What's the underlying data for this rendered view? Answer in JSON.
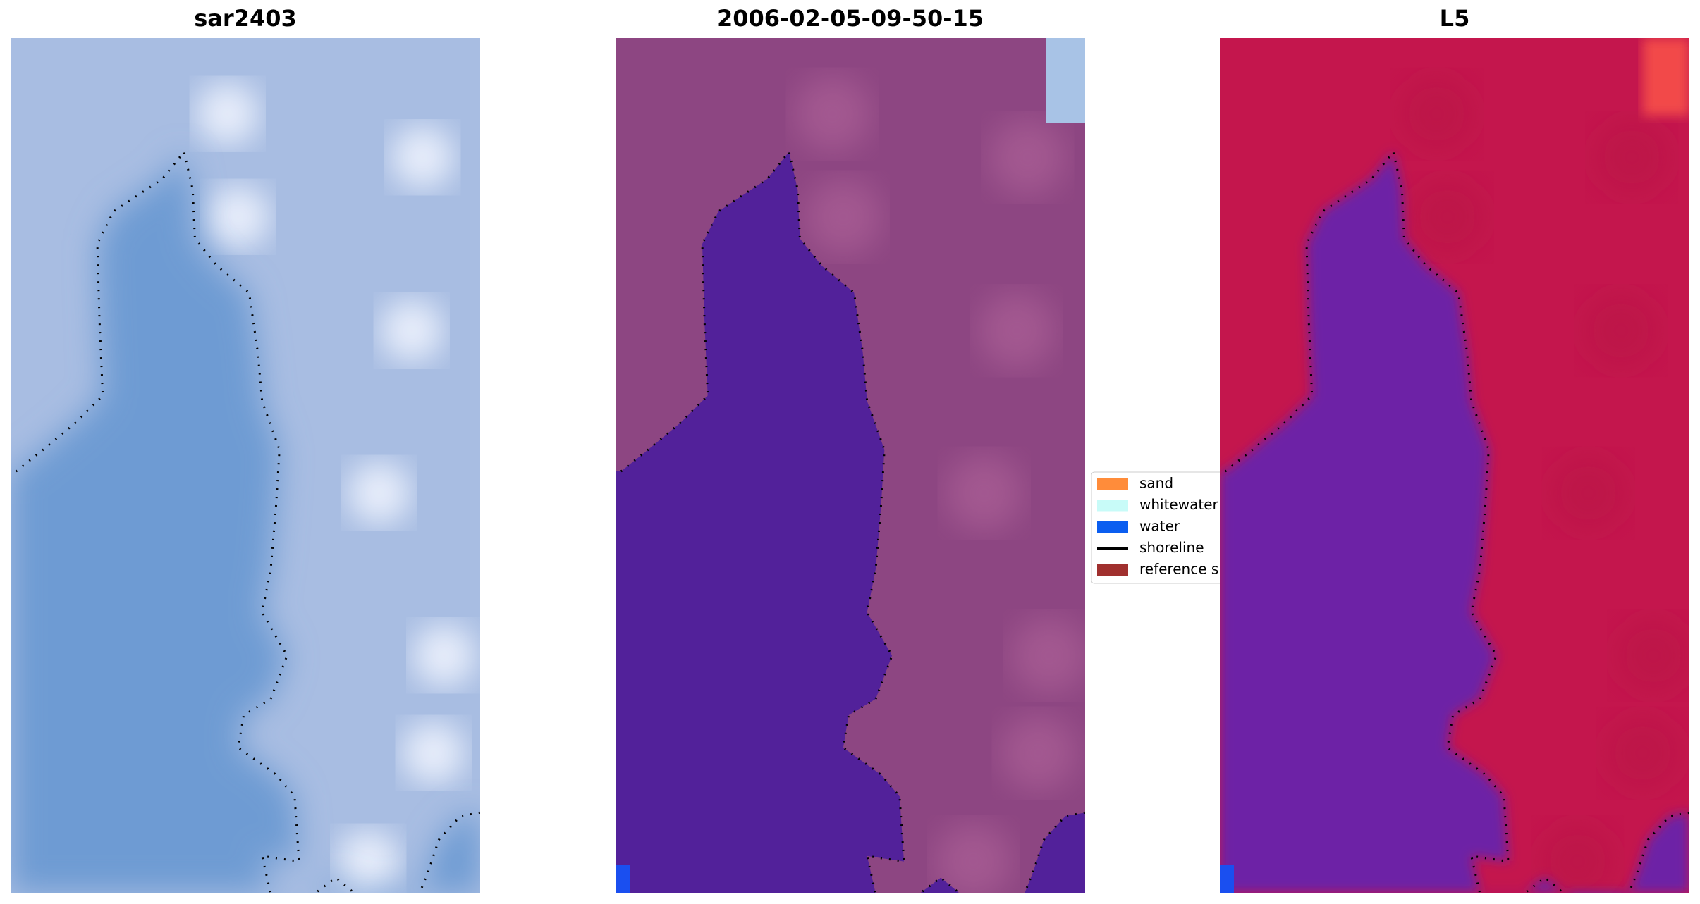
{
  "panels": [
    {
      "title": "sar2403"
    },
    {
      "title": "2006-02-05-09-50-15"
    },
    {
      "title": "L5"
    }
  ],
  "legend": [
    {
      "label": "sand",
      "color": "#ff8c3a"
    },
    {
      "label": "whitewater",
      "color": "#c8fbf8"
    },
    {
      "label": "water",
      "color": "#0b5ef0"
    },
    {
      "label": "shoreline",
      "color": "#000000"
    },
    {
      "label": "reference shoreline",
      "color": "#a0302e"
    }
  ]
}
